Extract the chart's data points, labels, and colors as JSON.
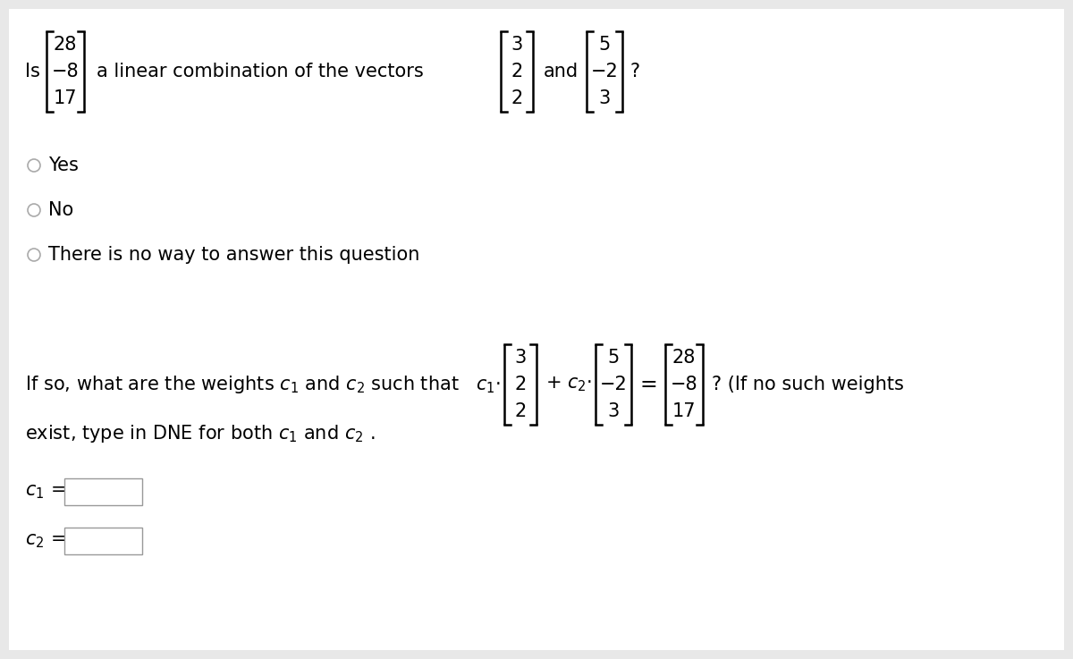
{
  "bg_color": "#e8e8e8",
  "content_bg": "#ffffff",
  "vec_b": [
    "28",
    "−8",
    "17"
  ],
  "vec1": [
    "3",
    "2",
    "2"
  ],
  "vec2": [
    "5",
    "−2",
    "3"
  ],
  "radio_options": [
    "Yes",
    "No",
    "There is no way to answer this question"
  ],
  "font_size_main": 14,
  "font_size_math": 14
}
